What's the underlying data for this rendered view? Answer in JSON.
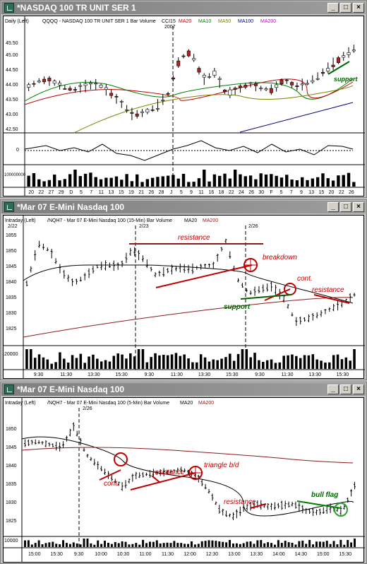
{
  "windows": [
    {
      "title": "*NASDAQ 100 TR UNIT SER 1",
      "header": [
        {
          "text": "Daily  (Left)",
          "color": "#000000"
        },
        {
          "text": "QQQQ - NASDAQ 100 TR UNIT SER 1  Bar  Volume",
          "color": "#000000"
        },
        {
          "text": "CCI15",
          "color": "#000000"
        },
        {
          "text": "MA20",
          "color": "#c00000"
        },
        {
          "text": "MA10",
          "color": "#008000"
        },
        {
          "text": "MA50",
          "color": "#808000"
        },
        {
          "text": "MA100",
          "color": "#000080"
        },
        {
          "text": "MA200",
          "color": "#c000c0"
        }
      ],
      "year_label": "2007",
      "y_ticks": [
        "45.50",
        "45.00",
        "44.50",
        "44.00",
        "43.50",
        "43.00",
        "42.50"
      ],
      "ind_tick": "0",
      "vol_tick": "100000000",
      "x_ticks": [
        "20",
        "22",
        "27",
        "29",
        "D",
        "5",
        "7",
        "11",
        "13",
        "15",
        "19",
        "21",
        "26",
        "28",
        "J",
        "5",
        "9",
        "11",
        "16",
        "18",
        "22",
        "24",
        "26",
        "30",
        "F",
        "5",
        "7",
        "9",
        "13",
        "15",
        "20",
        "22",
        "26"
      ],
      "annotations": [
        {
          "text": "support",
          "color": "#006400"
        }
      ]
    },
    {
      "title": "*Mar 07  E-Mini Nasdaq 100",
      "header": [
        {
          "text": "Intraday  (Left)",
          "color": "#000000"
        },
        {
          "text": "/NQH7 - Mar 07  E-Mini Nasdaq 100 (15-Min)  Bar  Volume",
          "color": "#000000"
        },
        {
          "text": "MA20",
          "color": "#000000"
        },
        {
          "text": "MA200",
          "color": "#8b1a1a"
        }
      ],
      "date_labels": [
        "2/22",
        "2/23",
        "2/26"
      ],
      "y_ticks": [
        "1855",
        "1850",
        "1845",
        "1840",
        "1835",
        "1830",
        "1825"
      ],
      "vol_tick": "20000",
      "x_ticks": [
        "9:30",
        "11:30",
        "13:30",
        "15:30",
        "9:30",
        "11:30",
        "13:30",
        "15:30",
        "9:30",
        "11:30",
        "13:30",
        "15:30"
      ],
      "annotations": [
        {
          "text": "resistance",
          "color": "#c00000"
        },
        {
          "text": "breakdown",
          "color": "#c00000"
        },
        {
          "text": "cont.",
          "color": "#c00000"
        },
        {
          "text": "resistance",
          "color": "#c00000"
        },
        {
          "text": "support",
          "color": "#006400"
        }
      ]
    },
    {
      "title": "*Mar 07  E-Mini Nasdaq 100",
      "header": [
        {
          "text": "Intraday  (Left)",
          "color": "#000000"
        },
        {
          "text": "/NQH7 - Mar 07  E-Mini Nasdaq 100 (5-Min)  Bar  Volume",
          "color": "#000000"
        },
        {
          "text": "MA20",
          "color": "#000000"
        },
        {
          "text": "MA200",
          "color": "#8b1a1a"
        }
      ],
      "date_labels": [
        "2/26"
      ],
      "y_ticks": [
        "1850",
        "1845",
        "1840",
        "1835",
        "1830",
        "1825"
      ],
      "vol_tick": "10000",
      "x_ticks": [
        "15:00",
        "15:30",
        "9:30",
        "10:00",
        "10:30",
        "11:00",
        "11:30",
        "12:00",
        "12:30",
        "13:00",
        "13:30",
        "14:00",
        "14:30",
        "15:00",
        "15:30"
      ],
      "annotations": [
        {
          "text": "cont.",
          "color": "#c00000"
        },
        {
          "text": "resistance",
          "color": "#c00000"
        },
        {
          "text": "triangle b/d",
          "color": "#c00000"
        },
        {
          "text": "resistance",
          "color": "#c00000"
        },
        {
          "text": "bull flag",
          "color": "#006400"
        }
      ]
    }
  ],
  "window_buttons": {
    "minimize": "_",
    "maximize": "□",
    "close": "×"
  }
}
